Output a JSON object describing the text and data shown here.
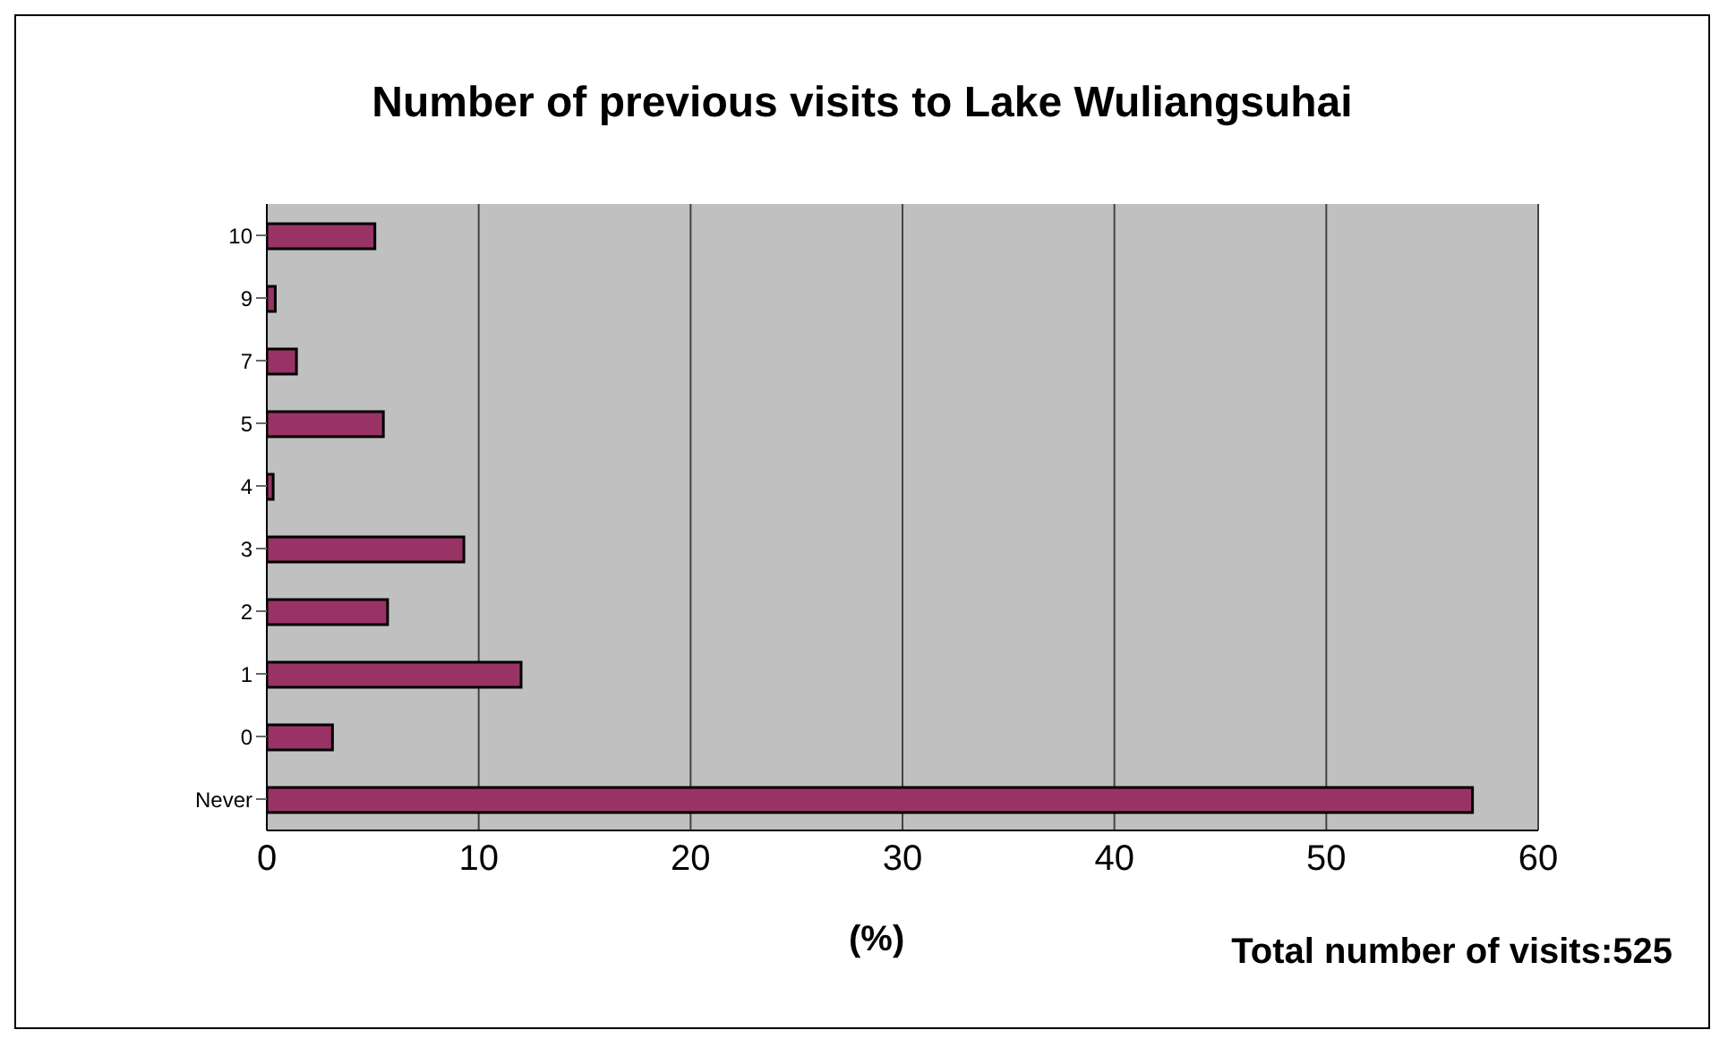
{
  "chart_data": {
    "type": "bar",
    "orientation": "horizontal",
    "title": "Number of previous visits to Lake Wuliangsuhai",
    "xlabel": "(%)",
    "categories": [
      "10",
      "9",
      "7",
      "5",
      "4",
      "3",
      "2",
      "1",
      "0",
      "Never"
    ],
    "values": [
      5.1,
      0.4,
      1.4,
      5.5,
      0.3,
      9.3,
      5.7,
      12.0,
      3.1,
      56.9
    ],
    "color": "#993366",
    "xlim": [
      0,
      60
    ],
    "xticks": [
      0,
      10,
      20,
      30,
      40,
      50,
      60
    ],
    "grid": "x",
    "annotations": [
      "Total number of visits:525"
    ]
  }
}
